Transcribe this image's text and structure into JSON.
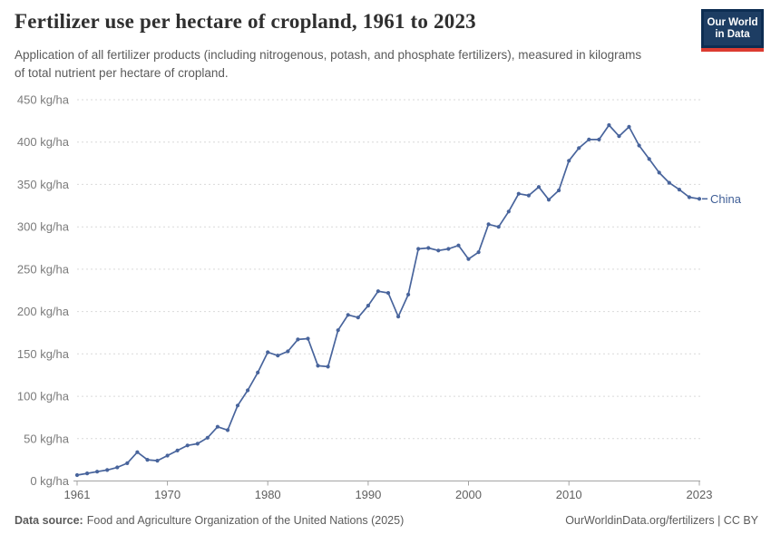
{
  "header": {
    "title": "Fertilizer use per hectare of cropland, 1961 to 2023",
    "subtitle": "Application of all fertilizer products (including nitrogenous, potash, and phosphate fertilizers), measured in kilograms of total nutrient per hectare of cropland.",
    "logo": {
      "line1": "Our World",
      "line2": "in Data"
    }
  },
  "footer": {
    "datasource_label": "Data source:",
    "datasource_text": "Food and Agriculture Organization of the United Nations (2025)",
    "link_text": "OurWorldinData.org/fertilizers",
    "separator": " | ",
    "license": "CC BY"
  },
  "colors": {
    "line": "#48649c",
    "series_label": "#3f5e96",
    "grid": "#d9d9d9",
    "axis": "#a3a3a3",
    "logo_navy": "#1d3d63",
    "logo_red": "#dc3c31"
  },
  "chart_data": {
    "type": "line",
    "title": "Fertilizer use per hectare of cropland, 1961 to 2023",
    "subtitle": "Application of all fertilizer products (including nitrogenous, potash, and phosphate fertilizers), measured in kilograms of total nutrient per hectare of cropland.",
    "unit": "kg/ha",
    "xlabel": "",
    "ylabel": "kg/ha",
    "xlim": [
      1961,
      2023
    ],
    "ylim": [
      0,
      450
    ],
    "grid": "horizontal-dashed",
    "legend": "line-end-label",
    "end_label": "China",
    "x_ticks": [
      1961,
      1970,
      1980,
      1990,
      2000,
      2010,
      2023
    ],
    "y_ticks": [
      {
        "value": 0,
        "label": "0 kg/ha"
      },
      {
        "value": 50,
        "label": "50 kg/ha"
      },
      {
        "value": 100,
        "label": "100 kg/ha"
      },
      {
        "value": 150,
        "label": "150 kg/ha"
      },
      {
        "value": 200,
        "label": "200 kg/ha"
      },
      {
        "value": 250,
        "label": "250 kg/ha"
      },
      {
        "value": 300,
        "label": "300 kg/ha"
      },
      {
        "value": 350,
        "label": "350 kg/ha"
      },
      {
        "value": 400,
        "label": "400 kg/ha"
      },
      {
        "value": 450,
        "label": "450 kg/ha"
      }
    ],
    "x": [
      1961,
      1962,
      1963,
      1964,
      1965,
      1966,
      1967,
      1968,
      1969,
      1970,
      1971,
      1972,
      1973,
      1974,
      1975,
      1976,
      1977,
      1978,
      1979,
      1980,
      1981,
      1982,
      1983,
      1984,
      1985,
      1986,
      1987,
      1988,
      1989,
      1990,
      1991,
      1992,
      1993,
      1994,
      1995,
      1996,
      1997,
      1998,
      1999,
      2000,
      2001,
      2002,
      2003,
      2004,
      2005,
      2006,
      2007,
      2008,
      2009,
      2010,
      2011,
      2012,
      2013,
      2014,
      2015,
      2016,
      2017,
      2018,
      2019,
      2020,
      2021,
      2022,
      2023
    ],
    "series": [
      {
        "name": "China",
        "color": "#48649c",
        "values": [
          7,
          9,
          11,
          13,
          16,
          21,
          34,
          25,
          24,
          30,
          36,
          42,
          44,
          51,
          64,
          60,
          89,
          107,
          128,
          152,
          148,
          153,
          167,
          168,
          136,
          135,
          178,
          196,
          193,
          207,
          224,
          222,
          194,
          220,
          274,
          275,
          272,
          274,
          278,
          262,
          270,
          303,
          300,
          318,
          339,
          337,
          347,
          332,
          343,
          378,
          393,
          403,
          403,
          420,
          407,
          418,
          396,
          380,
          364,
          352,
          344,
          335,
          333
        ]
      }
    ]
  }
}
